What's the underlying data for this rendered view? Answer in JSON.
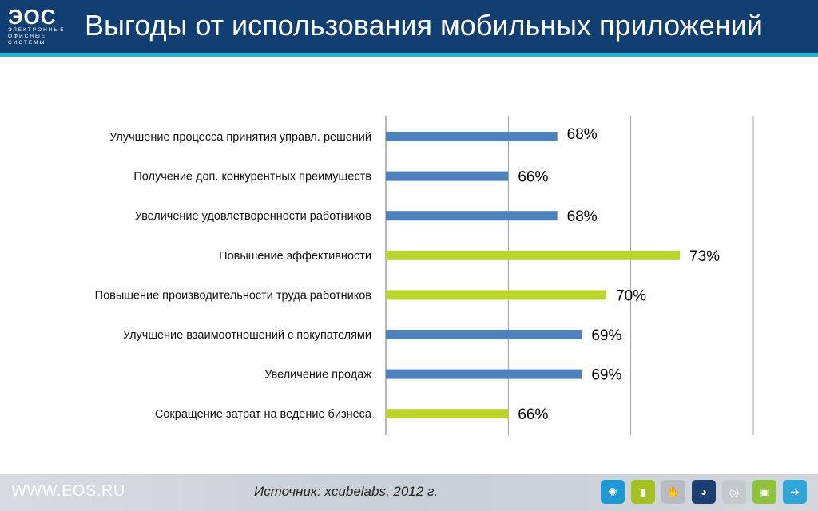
{
  "header": {
    "logo_main": "ЭОС",
    "logo_sub1": "ЭЛЕКТРОННЫЕ",
    "logo_sub2": "ОФИСНЫЕ",
    "logo_sub3": "СИСТЕМЫ",
    "title": "Выгоды от использования мобильных приложений"
  },
  "footer": {
    "url": "WWW.EOS.RU",
    "source": "Источник: xcubelabs, 2012 г.",
    "icons": [
      "globe-icon",
      "bar-chart-icon",
      "handshake-icon",
      "pie-chart-icon",
      "world-icon",
      "document-icon",
      "arrow-card-icon"
    ],
    "icon_colors": [
      "#1d9ad3",
      "#a5c020",
      "#b8bcc2",
      "#1b3f72",
      "#c5c8cc",
      "#8fc33a",
      "#2fa6d9"
    ]
  },
  "colors": {
    "blue": "#4f81bd",
    "green": "#bcd42e",
    "grid": "#8a8a8a",
    "header": "#123f72",
    "stripe": "#23b3d6"
  },
  "chart_data": {
    "type": "bar",
    "orientation": "horizontal",
    "categories": [
      "Улучшение процесса принятия управл. решений",
      "Получение доп. конкурентных преимуществ",
      "Увеличение удовлетворенности работников",
      "Повышение эффективности",
      "Повышение производительности труда работников",
      "Улучшение взаимоотношений с покупателями",
      "Увеличение продаж",
      "Сокращение затрат на ведение бизнеса"
    ],
    "values": [
      68,
      66,
      68,
      73,
      70,
      69,
      69,
      66
    ],
    "value_labels": [
      "68%",
      "66%",
      "68%",
      "73%",
      "70%",
      "69%",
      "69%",
      "66%"
    ],
    "bar_colors": [
      "blue",
      "blue",
      "blue",
      "green",
      "green",
      "blue",
      "blue",
      "green"
    ],
    "xlim": [
      61,
      74
    ],
    "gridlines": [
      61,
      66,
      71,
      76
    ],
    "grid": true,
    "legend": "none"
  }
}
